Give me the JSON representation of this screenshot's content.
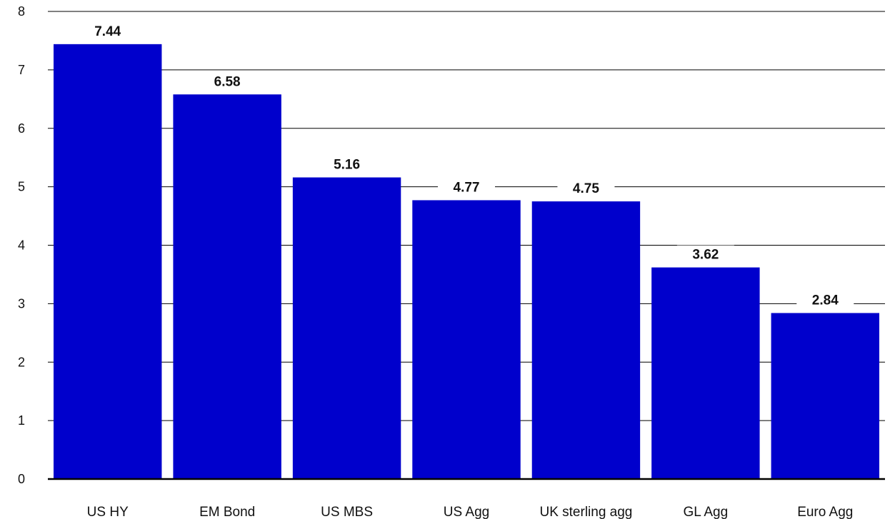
{
  "chart_data": {
    "type": "bar",
    "title": "",
    "xlabel": "",
    "ylabel": "",
    "categories": [
      "US HY",
      "EM Bond",
      "US MBS",
      "US Agg",
      "UK sterling agg",
      "GL Agg",
      "Euro Agg"
    ],
    "values": [
      7.44,
      6.58,
      5.16,
      4.77,
      4.75,
      3.62,
      2.84
    ],
    "data_labels": [
      "7.44",
      "6.58",
      "5.16",
      "4.77",
      "4.75",
      "3.62",
      "2.84"
    ],
    "ylim": [
      0,
      8
    ],
    "yticks": [
      0,
      1,
      2,
      3,
      4,
      5,
      6,
      7,
      8
    ],
    "ytick_labels": [
      "0",
      "1",
      "2",
      "3",
      "4",
      "5",
      "6",
      "7",
      "8"
    ],
    "grid": true,
    "legend": "none",
    "bar_color": "#0000cc",
    "grid_color": "#000000",
    "text_color": "#111111"
  }
}
